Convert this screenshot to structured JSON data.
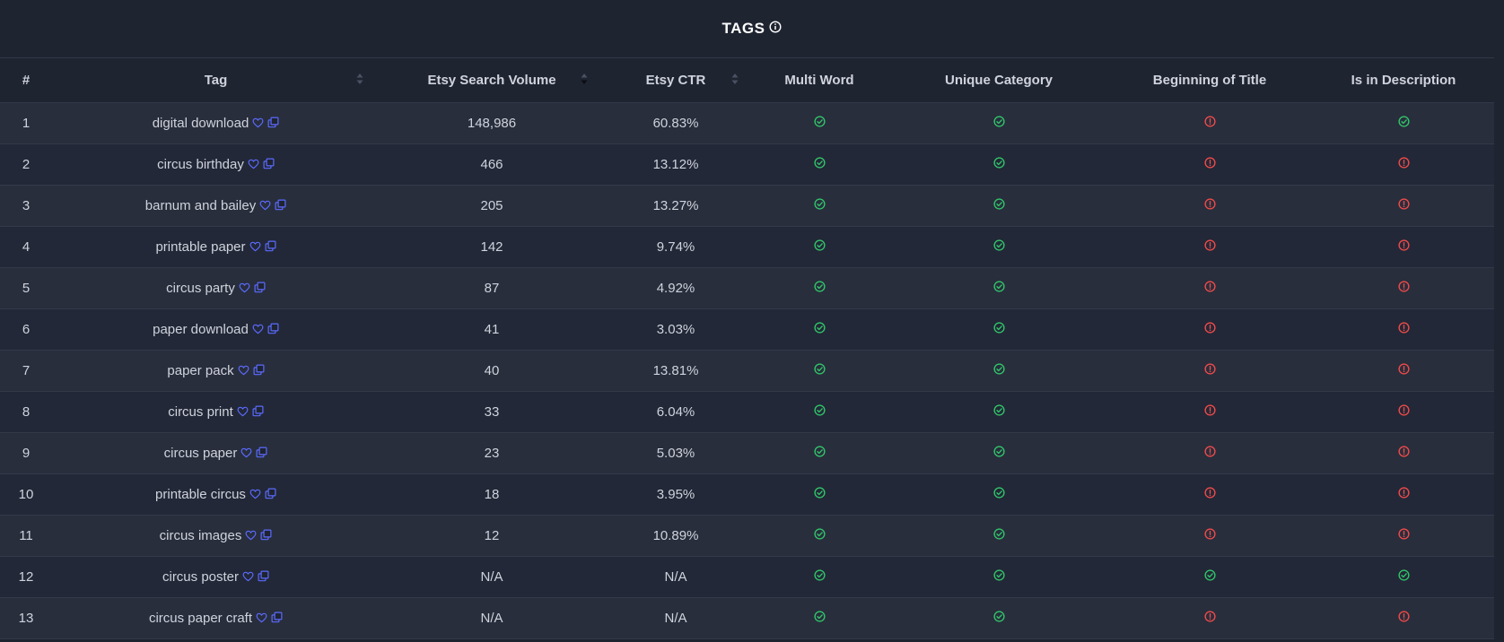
{
  "header": {
    "title": "TAGS"
  },
  "columns": {
    "index": "#",
    "tag": "Tag",
    "volume": "Etsy Search Volume",
    "ctr": "Etsy CTR",
    "multi_word": "Multi Word",
    "unique_category": "Unique Category",
    "beginning_of_title": "Beginning of Title",
    "in_description": "Is in Description"
  },
  "icon_legend": {
    "ok": "check-circle-icon",
    "warn": "alert-circle-icon"
  },
  "colors": {
    "ok": "#31c46a",
    "warn": "#ef4a4a",
    "link": "#5b6bff"
  },
  "rows": [
    {
      "index": "1",
      "tag": "digital download",
      "volume": "148,986",
      "ctr": "60.83%",
      "multi_word": "ok",
      "unique_category": "ok",
      "beginning_of_title": "warn",
      "in_description": "ok"
    },
    {
      "index": "2",
      "tag": "circus birthday",
      "volume": "466",
      "ctr": "13.12%",
      "multi_word": "ok",
      "unique_category": "ok",
      "beginning_of_title": "warn",
      "in_description": "warn"
    },
    {
      "index": "3",
      "tag": "barnum and bailey",
      "volume": "205",
      "ctr": "13.27%",
      "multi_word": "ok",
      "unique_category": "ok",
      "beginning_of_title": "warn",
      "in_description": "warn"
    },
    {
      "index": "4",
      "tag": "printable paper",
      "volume": "142",
      "ctr": "9.74%",
      "multi_word": "ok",
      "unique_category": "ok",
      "beginning_of_title": "warn",
      "in_description": "warn"
    },
    {
      "index": "5",
      "tag": "circus party",
      "volume": "87",
      "ctr": "4.92%",
      "multi_word": "ok",
      "unique_category": "ok",
      "beginning_of_title": "warn",
      "in_description": "warn"
    },
    {
      "index": "6",
      "tag": "paper download",
      "volume": "41",
      "ctr": "3.03%",
      "multi_word": "ok",
      "unique_category": "ok",
      "beginning_of_title": "warn",
      "in_description": "warn"
    },
    {
      "index": "7",
      "tag": "paper pack",
      "volume": "40",
      "ctr": "13.81%",
      "multi_word": "ok",
      "unique_category": "ok",
      "beginning_of_title": "warn",
      "in_description": "warn"
    },
    {
      "index": "8",
      "tag": "circus print",
      "volume": "33",
      "ctr": "6.04%",
      "multi_word": "ok",
      "unique_category": "ok",
      "beginning_of_title": "warn",
      "in_description": "warn"
    },
    {
      "index": "9",
      "tag": "circus paper",
      "volume": "23",
      "ctr": "5.03%",
      "multi_word": "ok",
      "unique_category": "ok",
      "beginning_of_title": "warn",
      "in_description": "warn"
    },
    {
      "index": "10",
      "tag": "printable circus",
      "volume": "18",
      "ctr": "3.95%",
      "multi_word": "ok",
      "unique_category": "ok",
      "beginning_of_title": "warn",
      "in_description": "warn"
    },
    {
      "index": "11",
      "tag": "circus images",
      "volume": "12",
      "ctr": "10.89%",
      "multi_word": "ok",
      "unique_category": "ok",
      "beginning_of_title": "warn",
      "in_description": "warn"
    },
    {
      "index": "12",
      "tag": "circus poster",
      "volume": "N/A",
      "ctr": "N/A",
      "multi_word": "ok",
      "unique_category": "ok",
      "beginning_of_title": "ok",
      "in_description": "ok"
    },
    {
      "index": "13",
      "tag": "circus paper craft",
      "volume": "N/A",
      "ctr": "N/A",
      "multi_word": "ok",
      "unique_category": "ok",
      "beginning_of_title": "warn",
      "in_description": "warn"
    }
  ]
}
